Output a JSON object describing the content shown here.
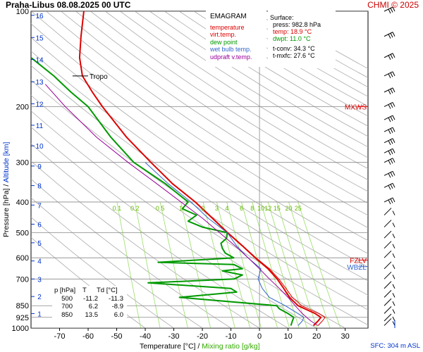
{
  "header": {
    "station_time": "Praha-Libus   08.08.2025 00 UTC",
    "credit": "CHMI © 2025"
  },
  "legend": {
    "title": "EMAGRAM",
    "items": [
      {
        "label": "temperature",
        "color": "#dd0000"
      },
      {
        "label": "virt.temp.",
        "color": "#dd0000"
      },
      {
        "label": "dew point",
        "color": "#009900"
      },
      {
        "label": "wet bulb temp.",
        "color": "#3366cc"
      },
      {
        "label": "udpraft v.temp.",
        "color": "#990099"
      }
    ]
  },
  "surface": {
    "title": "Surface:",
    "press": "press: 982.8 hPa",
    "temp": "temp: 18.9 °C",
    "dwpt": "dwpt: 11.0 °C",
    "tconv": "t-conv: 34.3 °C",
    "tmxfc": "t-mxfc: 27.6 °C"
  },
  "pt_table": {
    "header": [
      "p [hPa]",
      "T",
      "Td [°C]"
    ],
    "rows": [
      [
        "500",
        "-11.2",
        "-11.3"
      ],
      [
        "700",
        "6.2",
        "-8.9"
      ],
      [
        "850",
        "13.5",
        "6.0"
      ]
    ]
  },
  "axis": {
    "xlabel_a": "Temperature [°C]  /  ",
    "xlabel_b": "Mixing ratio [g/kg]",
    "ylabel_a": "Pressure [hPa]  /  ",
    "ylabel_b": "Altitude [km]",
    "sfc": "SFC: 304 m ASL"
  },
  "chart_data": {
    "type": "line",
    "title": "EMAGRAM",
    "xlabel": "Temperature [°C] / Mixing ratio [g/kg]",
    "ylabel": "Pressure [hPa] / Altitude [km]",
    "x_scale": "linear",
    "y_scale": "log",
    "xlim": [
      -80,
      38
    ],
    "ylim": [
      1000,
      100
    ],
    "x_ticks": [
      -70,
      -60,
      -50,
      -40,
      -30,
      -20,
      -10,
      0,
      10,
      20,
      30
    ],
    "p_ticks": [
      100,
      200,
      300,
      400,
      500,
      600,
      700,
      850,
      925,
      1000
    ],
    "altitude_ticks_km": [
      {
        "label": "1",
        "p": 900
      },
      {
        "label": "2",
        "p": 795
      },
      {
        "label": "3",
        "p": 700
      },
      {
        "label": "4",
        "p": 614
      },
      {
        "label": "5",
        "p": 538
      },
      {
        "label": "6",
        "p": 470
      },
      {
        "label": "7",
        "p": 409
      },
      {
        "label": "8",
        "p": 355
      },
      {
        "label": "9",
        "p": 308
      },
      {
        "label": "10",
        "p": 266
      },
      {
        "label": "11",
        "p": 229
      },
      {
        "label": "12",
        "p": 196
      },
      {
        "label": "13",
        "p": 167
      },
      {
        "label": "14",
        "p": 142
      },
      {
        "label": "15",
        "p": 121
      },
      {
        "label": "16",
        "p": 103
      }
    ],
    "mixing_ratio_labels": [
      "0.1",
      "0.2",
      "0.5",
      "1",
      "2",
      "3",
      "4",
      "6",
      "8",
      "10",
      "12",
      "15",
      "20",
      "25"
    ],
    "mixing_ratio_values": [
      0.1,
      0.2,
      0.5,
      1,
      2,
      3,
      4,
      6,
      8,
      10,
      12,
      15,
      20,
      25
    ],
    "annotations": [
      {
        "label": "Tropo",
        "p": 160,
        "t": -62
      },
      {
        "label": "MXWS",
        "p": 200
      },
      {
        "label": "FZLV",
        "p": 610
      },
      {
        "label": "WBZL",
        "p": 640
      }
    ],
    "series": [
      {
        "name": "temperature",
        "color": "#dd0000",
        "p": [
          982,
          950,
          925,
          900,
          850,
          800,
          750,
          700,
          650,
          600,
          550,
          500,
          450,
          400,
          350,
          300,
          250,
          200,
          180,
          160,
          140,
          120,
          100
        ],
        "t": [
          18.9,
          20.5,
          21.5,
          19.5,
          13.5,
          10.5,
          8.5,
          6.2,
          3.0,
          -1.5,
          -6.0,
          -11.2,
          -16.5,
          -22.5,
          -30.5,
          -38.0,
          -46.5,
          -55.0,
          -58.5,
          -62.0,
          -63.0,
          -62.5,
          -61.5
        ]
      },
      {
        "name": "virt.temp.",
        "color": "#dd0000",
        "p": [
          982,
          950,
          925,
          900,
          850,
          800,
          750,
          700,
          650,
          600,
          550,
          500,
          450,
          400,
          350,
          300,
          250
        ],
        "t": [
          20.5,
          22.0,
          23.0,
          20.8,
          14.8,
          11.5,
          9.3,
          6.8,
          3.5,
          -1.2,
          -5.8,
          -11.0,
          -16.3,
          -22.4,
          -30.4,
          -37.9,
          -46.4
        ]
      },
      {
        "name": "dew point",
        "color": "#009900",
        "p": [
          982,
          950,
          925,
          900,
          870,
          850,
          800,
          770,
          750,
          720,
          700,
          680,
          660,
          650,
          630,
          620,
          600,
          580,
          560,
          540,
          520,
          500,
          480,
          460,
          440,
          420,
          400,
          350,
          300,
          250,
          200,
          180,
          160,
          140,
          120,
          100
        ],
        "t": [
          11.0,
          11.5,
          12.0,
          10.0,
          7.0,
          6.0,
          -28.0,
          -8.0,
          -10.0,
          -39.0,
          -8.9,
          -6.0,
          -13.0,
          -6.0,
          -9.0,
          -35.5,
          -9.0,
          -12.0,
          -13.0,
          -13.5,
          -11.5,
          -11.3,
          -20.0,
          -25.0,
          -22.0,
          -27.0,
          -25.0,
          -33.0,
          -44.0,
          -52.0,
          -60.0,
          -66.0,
          -72.0,
          -80.0,
          -95.0,
          -105.0
        ]
      },
      {
        "name": "wet bulb temp.",
        "color": "#3366cc",
        "p": [
          982,
          950,
          925,
          900,
          850,
          800,
          750,
          700,
          650,
          600,
          550,
          500,
          450,
          400,
          350,
          300
        ],
        "t": [
          13.5,
          15.0,
          15.5,
          13.5,
          9.0,
          3.5,
          1.0,
          -0.5,
          0.5,
          -4.0,
          -8.0,
          -11.3,
          -18.0,
          -24.0,
          -32.0,
          -40.0
        ]
      },
      {
        "name": "udpraft v.temp.",
        "color": "#990099",
        "p": [
          982,
          950,
          925,
          900,
          850,
          800,
          750,
          700,
          650,
          600,
          550,
          500,
          450,
          400,
          350,
          300,
          250,
          200,
          170
        ],
        "t": [
          20.5,
          18.0,
          16.5,
          15.0,
          12.5,
          10.0,
          7.0,
          3.5,
          0.0,
          -4.0,
          -8.5,
          -14.0,
          -20.0,
          -27.5,
          -36.0,
          -46.0,
          -57.0,
          -68.0,
          -75.0
        ]
      }
    ],
    "wind_barbs_p": [
      100,
      120,
      140,
      160,
      180,
      200,
      220,
      240,
      260,
      280,
      300,
      330,
      360,
      400,
      440,
      480,
      520,
      560,
      600,
      650,
      700,
      750,
      800,
      850,
      900,
      950,
      982
    ]
  }
}
